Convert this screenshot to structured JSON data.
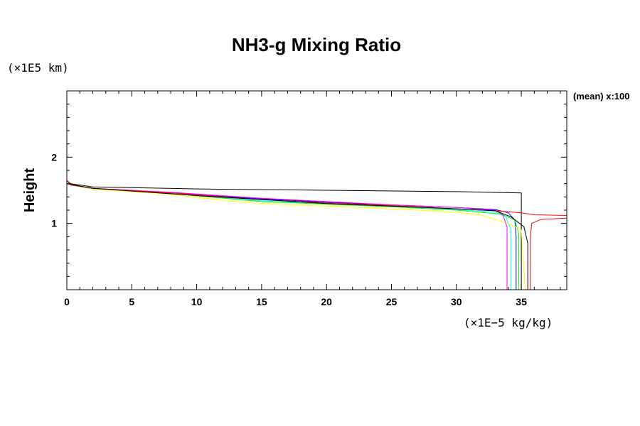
{
  "chart_data": {
    "type": "line",
    "title": "NH3-g Mixing Ratio",
    "ylabel": "Height",
    "y_unit": "(×1E5 km)",
    "x_unit": "(×1E−5 kg/kg)",
    "annotation": "(mean) x:100",
    "xlim": [
      0,
      38.5
    ],
    "ylim": [
      0,
      3
    ],
    "x_ticks": [
      0,
      5,
      10,
      15,
      20,
      25,
      30,
      35
    ],
    "y_ticks": [
      1,
      2
    ],
    "series": [
      {
        "color": "#000000",
        "points": [
          [
            0,
            3
          ],
          [
            0,
            1.65
          ],
          [
            0.3,
            1.6
          ],
          [
            2,
            1.55
          ],
          [
            10,
            1.52
          ],
          [
            20,
            1.5
          ],
          [
            30,
            1.48
          ],
          [
            35,
            1.46
          ],
          [
            35,
            0
          ]
        ]
      },
      {
        "color": "#0000ff",
        "points": [
          [
            0,
            3
          ],
          [
            0,
            1.65
          ],
          [
            0.3,
            1.58
          ],
          [
            2,
            1.53
          ],
          [
            8,
            1.46
          ],
          [
            15,
            1.37
          ],
          [
            20,
            1.32
          ],
          [
            25,
            1.28
          ],
          [
            30,
            1.24
          ],
          [
            33,
            1.21
          ],
          [
            34,
            1.16
          ],
          [
            34.5,
            1.05
          ],
          [
            34.6,
            0.8
          ],
          [
            34.6,
            0
          ]
        ]
      },
      {
        "color": "#00ffff",
        "points": [
          [
            0,
            3
          ],
          [
            0,
            1.65
          ],
          [
            0.3,
            1.58
          ],
          [
            2,
            1.52
          ],
          [
            8,
            1.45
          ],
          [
            15,
            1.34
          ],
          [
            20,
            1.3
          ],
          [
            25,
            1.26
          ],
          [
            30,
            1.21
          ],
          [
            33,
            1.17
          ],
          [
            33.8,
            1.1
          ],
          [
            34.2,
            0.9
          ],
          [
            34.2,
            0
          ]
        ]
      },
      {
        "color": "#00ff00",
        "points": [
          [
            0,
            3
          ],
          [
            0,
            1.65
          ],
          [
            0.3,
            1.58
          ],
          [
            2,
            1.52
          ],
          [
            8,
            1.45
          ],
          [
            15,
            1.33
          ],
          [
            20,
            1.29
          ],
          [
            25,
            1.25
          ],
          [
            30,
            1.2
          ],
          [
            33.5,
            1.14
          ],
          [
            34.5,
            1.05
          ],
          [
            34.8,
            0.85
          ],
          [
            34.8,
            0
          ]
        ]
      },
      {
        "color": "#ffff00",
        "points": [
          [
            0,
            3
          ],
          [
            0,
            1.65
          ],
          [
            0.3,
            1.58
          ],
          [
            2,
            1.52
          ],
          [
            8,
            1.44
          ],
          [
            12,
            1.35
          ],
          [
            15,
            1.3
          ],
          [
            20,
            1.26
          ],
          [
            25,
            1.22
          ],
          [
            30,
            1.17
          ],
          [
            32,
            1.12
          ],
          [
            34,
            1.0
          ],
          [
            35,
            0.9
          ],
          [
            35.3,
            0
          ]
        ]
      },
      {
        "color": "#ff00ff",
        "points": [
          [
            0,
            3
          ],
          [
            0,
            1.65
          ],
          [
            0.3,
            1.58
          ],
          [
            2,
            1.53
          ],
          [
            8,
            1.47
          ],
          [
            15,
            1.38
          ],
          [
            20,
            1.33
          ],
          [
            25,
            1.28
          ],
          [
            30,
            1.24
          ],
          [
            33,
            1.2
          ],
          [
            33.6,
            1.12
          ],
          [
            33.9,
            0.95
          ],
          [
            33.9,
            0
          ]
        ]
      },
      {
        "color": "#ff0000",
        "points": [
          [
            0,
            3
          ],
          [
            0,
            1.65
          ],
          [
            0.3,
            1.58
          ],
          [
            2,
            1.53
          ],
          [
            8,
            1.46
          ],
          [
            15,
            1.36
          ],
          [
            20,
            1.31
          ],
          [
            25,
            1.27
          ],
          [
            30,
            1.22
          ],
          [
            33,
            1.19
          ],
          [
            35,
            1.16
          ],
          [
            36,
            1.13
          ],
          [
            38.5,
            1.12
          ]
        ]
      },
      {
        "color": "#ff0000",
        "points": [
          [
            38.5,
            1.08
          ],
          [
            36.5,
            1.06
          ],
          [
            35.8,
            1.0
          ],
          [
            35.7,
            0.8
          ],
          [
            35.7,
            0
          ]
        ]
      },
      {
        "color": "#000000",
        "points": [
          [
            0,
            1.6
          ],
          [
            2,
            1.53
          ],
          [
            10,
            1.42
          ],
          [
            20,
            1.3
          ],
          [
            30,
            1.22
          ],
          [
            33,
            1.19
          ],
          [
            34.2,
            1.1
          ],
          [
            35.2,
            0.95
          ],
          [
            35.5,
            0.7
          ],
          [
            35.5,
            0
          ]
        ]
      }
    ]
  }
}
